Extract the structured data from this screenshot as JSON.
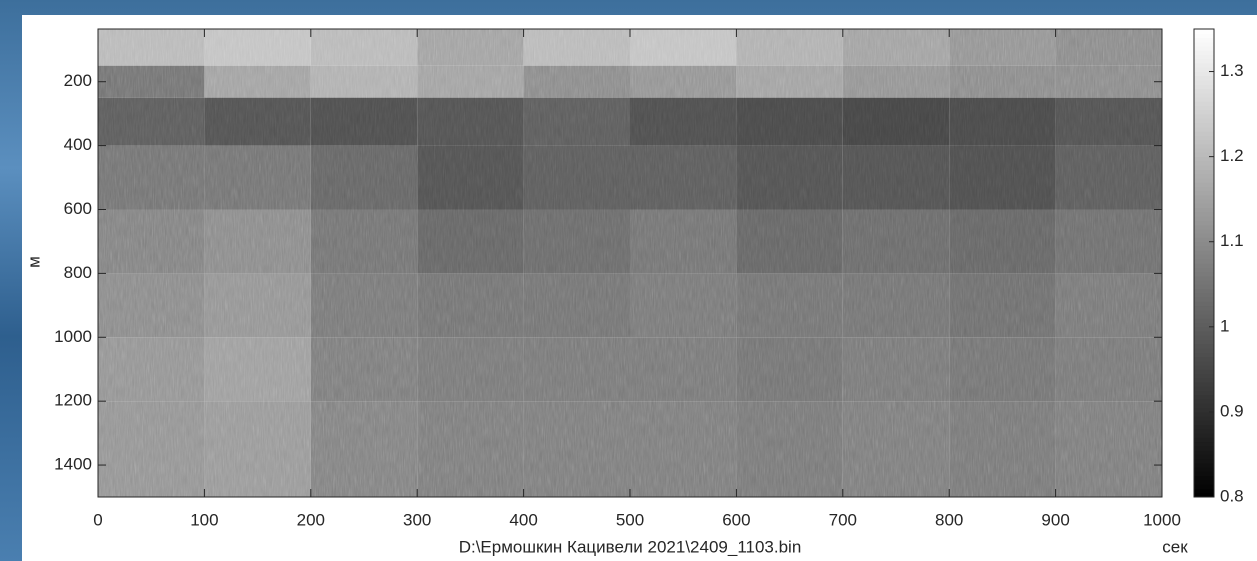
{
  "chart_data": {
    "type": "heatmap",
    "x_label": "D:\\Ермошкин Кацивели 2021\\2409_1103.bin",
    "x_unit_label": "сек",
    "y_label": "м",
    "xlim": [
      0,
      1000
    ],
    "xticks": [
      0,
      100,
      200,
      300,
      400,
      500,
      600,
      700,
      800,
      900,
      1000
    ],
    "ylim": [
      35,
      1500
    ],
    "yticks": [
      200,
      400,
      600,
      800,
      1000,
      1200,
      1400
    ],
    "y_inverted": true,
    "colormap": "gray",
    "clim": [
      0.8,
      1.35
    ],
    "cticks": [
      0.8,
      0.9,
      1,
      1.1,
      1.2,
      1.3
    ],
    "x_edges": [
      0,
      100,
      200,
      300,
      400,
      500,
      600,
      700,
      800,
      900,
      1000
    ],
    "y_edges": [
      35,
      150,
      250,
      400,
      600,
      800,
      1000,
      1200,
      1500
    ],
    "z": [
      [
        1.2,
        1.22,
        1.2,
        1.15,
        1.2,
        1.22,
        1.18,
        1.15,
        1.12,
        1.1
      ],
      [
        1.05,
        1.15,
        1.18,
        1.15,
        1.1,
        1.12,
        1.15,
        1.12,
        1.1,
        1.1
      ],
      [
        1.0,
        0.98,
        0.97,
        0.98,
        1.0,
        0.97,
        0.96,
        0.95,
        0.96,
        0.98
      ],
      [
        1.05,
        1.05,
        1.02,
        0.98,
        1.0,
        1.0,
        0.98,
        0.98,
        0.97,
        1.0
      ],
      [
        1.08,
        1.1,
        1.05,
        1.02,
        1.03,
        1.05,
        1.02,
        1.03,
        1.02,
        1.04
      ],
      [
        1.1,
        1.12,
        1.06,
        1.05,
        1.05,
        1.06,
        1.05,
        1.05,
        1.04,
        1.06
      ],
      [
        1.12,
        1.14,
        1.07,
        1.06,
        1.06,
        1.06,
        1.05,
        1.06,
        1.05,
        1.06
      ],
      [
        1.12,
        1.13,
        1.08,
        1.07,
        1.07,
        1.07,
        1.06,
        1.07,
        1.06,
        1.07
      ]
    ]
  }
}
